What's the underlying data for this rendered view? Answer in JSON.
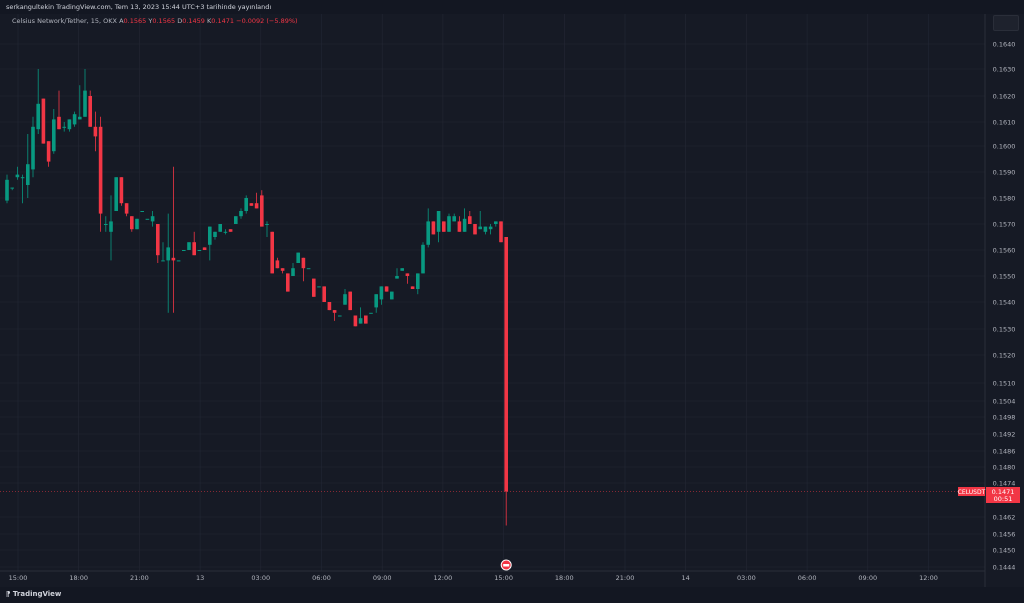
{
  "header": {
    "published": "serkangultekin TradingView.com, Tem 13, 2023 15:44 UTC+3 tarihinde yayınlandı"
  },
  "legend": {
    "symbol": "Celsius Network/Tether, 15, OKX",
    "open_label": "A",
    "open": "0.1565",
    "high_label": "Y",
    "high": "0.1565",
    "low_label": "D",
    "low": "0.1459",
    "close_label": "K",
    "close": "0.1471",
    "change": "−0.0092 (−5.89%)"
  },
  "price_badge": {
    "symbol": "CELUSDT",
    "price": "0.1471",
    "countdown": "00:51"
  },
  "footer": {
    "brand": "TradingView",
    "logo_icon": "tradingview-logo-icon"
  },
  "colors": {
    "up": "#089981",
    "down": "#f23645",
    "background": "#161a25",
    "grid": "#232734"
  },
  "chart_data": {
    "type": "candlestick",
    "interval": "15",
    "price_ticks": [
      "0.1640",
      "0.1630",
      "0.1620",
      "0.1610",
      "0.1600",
      "0.1590",
      "0.1580",
      "0.1570",
      "0.1560",
      "0.1550",
      "0.1540",
      "0.1530",
      "0.1520",
      "0.1510",
      "0.1504",
      "0.1498",
      "0.1492",
      "0.1486",
      "0.1480",
      "0.1474",
      "0.1462",
      "0.1456",
      "0.1450",
      "0.1444"
    ],
    "time_ticks": [
      "15:00",
      "18:00",
      "21:00",
      "13",
      "03:00",
      "06:00",
      "09:00",
      "12:00",
      "15:00",
      "18:00",
      "21:00",
      "14",
      "03:00",
      "06:00",
      "09:00",
      "12:00"
    ],
    "last_price": 0.1471,
    "candles": [
      [
        0.1579,
        0.1589,
        0.1578,
        0.1587
      ],
      [
        0.1584,
        0.1584,
        0.1583,
        0.1584
      ],
      [
        0.1588,
        0.1592,
        0.1587,
        0.1589
      ],
      [
        0.1588,
        0.1589,
        0.1578,
        0.1588
      ],
      [
        0.1585,
        0.1605,
        0.158,
        0.1593
      ],
      [
        0.1591,
        0.1612,
        0.1588,
        0.1608
      ],
      [
        0.1607,
        0.163,
        0.1605,
        0.1617
      ],
      [
        0.1619,
        0.1619,
        0.1601,
        0.1601
      ],
      [
        0.1602,
        0.1602,
        0.1592,
        0.1594
      ],
      [
        0.1598,
        0.1615,
        0.1597,
        0.1611
      ],
      [
        0.1612,
        0.1622,
        0.1607,
        0.1607
      ],
      [
        0.1608,
        0.161,
        0.1606,
        0.1608
      ],
      [
        0.1607,
        0.1611,
        0.1606,
        0.1611
      ],
      [
        0.1609,
        0.1614,
        0.1608,
        0.1613
      ],
      [
        0.1611,
        0.1624,
        0.1611,
        0.1612
      ],
      [
        0.1612,
        0.163,
        0.1612,
        0.1622
      ],
      [
        0.162,
        0.1622,
        0.1608,
        0.1608
      ],
      [
        0.1608,
        0.1614,
        0.1598,
        0.1604
      ],
      [
        0.1608,
        0.1612,
        0.1567,
        0.1574
      ],
      [
        0.157,
        0.1573,
        0.1567,
        0.157
      ],
      [
        0.1567,
        0.1581,
        0.1556,
        0.1571
      ],
      [
        0.1575,
        0.1588,
        0.1575,
        0.1588
      ],
      [
        0.1588,
        0.1588,
        0.1577,
        0.1578
      ],
      [
        0.1578,
        0.1578,
        0.1573,
        0.1574
      ],
      [
        0.1573,
        0.1573,
        0.1567,
        0.1568
      ],
      [
        0.1568,
        0.1572,
        0.1568,
        0.1572
      ],
      [
        0.1575,
        0.1575,
        0.1575,
        0.1575
      ],
      [
        0.1572,
        0.1572,
        0.1572,
        0.1572
      ],
      [
        0.1571,
        0.1575,
        0.1569,
        0.1573
      ],
      [
        0.157,
        0.157,
        0.1555,
        0.1558
      ],
      [
        0.1556,
        0.1563,
        0.1556,
        0.1556
      ],
      [
        0.1556,
        0.1574,
        0.1536,
        0.1561
      ],
      [
        0.1557,
        0.1592,
        0.1536,
        0.1556
      ],
      [
        0.1556,
        0.1556,
        0.1556,
        0.1556
      ],
      [
        0.156,
        0.156,
        0.156,
        0.156
      ],
      [
        0.156,
        0.1563,
        0.156,
        0.1563
      ],
      [
        0.1563,
        0.1567,
        0.1558,
        0.1558
      ],
      [
        0.156,
        0.156,
        0.156,
        0.156
      ],
      [
        0.1561,
        0.1561,
        0.156,
        0.156
      ],
      [
        0.1562,
        0.1569,
        0.1556,
        0.1569
      ],
      [
        0.1565,
        0.1567,
        0.1564,
        0.1567
      ],
      [
        0.1567,
        0.157,
        0.1567,
        0.157
      ],
      [
        0.1567,
        0.1568,
        0.1566,
        0.1567
      ],
      [
        0.1568,
        0.1568,
        0.1567,
        0.1567
      ],
      [
        0.157,
        0.1573,
        0.157,
        0.1573
      ],
      [
        0.1573,
        0.1576,
        0.1572,
        0.1575
      ],
      [
        0.1575,
        0.1581,
        0.1574,
        0.158
      ],
      [
        0.1578,
        0.1578,
        0.1577,
        0.1577
      ],
      [
        0.1578,
        0.1582,
        0.1576,
        0.1576
      ],
      [
        0.1581,
        0.1583,
        0.1569,
        0.1569
      ],
      [
        0.157,
        0.1571,
        0.1565,
        0.157
      ],
      [
        0.1567,
        0.1567,
        0.1551,
        0.1551
      ],
      [
        0.1556,
        0.1557,
        0.1553,
        0.1553
      ],
      [
        0.1553,
        0.1553,
        0.1551,
        0.1552
      ],
      [
        0.1551,
        0.1551,
        0.1544,
        0.1544
      ],
      [
        0.155,
        0.1555,
        0.155,
        0.1553
      ],
      [
        0.1555,
        0.1559,
        0.1555,
        0.1559
      ],
      [
        0.1557,
        0.1557,
        0.1548,
        0.1553
      ],
      [
        0.1553,
        0.1553,
        0.1553,
        0.1553
      ],
      [
        0.1549,
        0.1549,
        0.1542,
        0.1542
      ],
      [
        0.1546,
        0.1546,
        0.1546,
        0.1546
      ],
      [
        0.1546,
        0.1546,
        0.154,
        0.154
      ],
      [
        0.154,
        0.154,
        0.1537,
        0.1537
      ],
      [
        0.1537,
        0.1537,
        0.1533,
        0.1536
      ],
      [
        0.1535,
        0.1535,
        0.1535,
        0.1535
      ],
      [
        0.1539,
        0.1545,
        0.1539,
        0.1543
      ],
      [
        0.1544,
        0.1544,
        0.1537,
        0.1537
      ],
      [
        0.1535,
        0.1535,
        0.1531,
        0.1531
      ],
      [
        0.1532,
        0.1538,
        0.1532,
        0.1534
      ],
      [
        0.1535,
        0.1535,
        0.1532,
        0.1532
      ],
      [
        0.1536,
        0.1536,
        0.1536,
        0.1536
      ],
      [
        0.1538,
        0.1543,
        0.1536,
        0.1543
      ],
      [
        0.1541,
        0.1546,
        0.1539,
        0.1546
      ],
      [
        0.1546,
        0.1546,
        0.1544,
        0.1544
      ],
      [
        0.1541,
        0.1544,
        0.1541,
        0.1544
      ],
      [
        0.1549,
        0.1553,
        0.1549,
        0.155
      ],
      [
        0.1552,
        0.1553,
        0.1552,
        0.1553
      ],
      [
        0.1551,
        0.1551,
        0.1547,
        0.155
      ],
      [
        0.1546,
        0.1546,
        0.1545,
        0.1545
      ],
      [
        0.1545,
        0.1551,
        0.1543,
        0.1551
      ],
      [
        0.1551,
        0.1563,
        0.1551,
        0.1562
      ],
      [
        0.1562,
        0.1576,
        0.1561,
        0.1571
      ],
      [
        0.1571,
        0.1571,
        0.1566,
        0.1566
      ],
      [
        0.1567,
        0.1575,
        0.1563,
        0.1575
      ],
      [
        0.1571,
        0.1571,
        0.1567,
        0.1567
      ],
      [
        0.1567,
        0.1574,
        0.1567,
        0.1573
      ],
      [
        0.1571,
        0.1574,
        0.1571,
        0.1573
      ],
      [
        0.1571,
        0.1573,
        0.1567,
        0.1567
      ],
      [
        0.1567,
        0.1576,
        0.1567,
        0.1572
      ],
      [
        0.1573,
        0.1575,
        0.157,
        0.157
      ],
      [
        0.157,
        0.157,
        0.1566,
        0.1566
      ],
      [
        0.1568,
        0.1575,
        0.1568,
        0.1569
      ],
      [
        0.1567,
        0.1569,
        0.1566,
        0.1569
      ],
      [
        0.1568,
        0.157,
        0.1566,
        0.1569
      ],
      [
        0.157,
        0.1571,
        0.1569,
        0.1571
      ],
      [
        0.1571,
        0.1571,
        0.1563,
        0.1563
      ],
      [
        0.1565,
        0.1565,
        0.1459,
        0.1471
      ]
    ]
  }
}
